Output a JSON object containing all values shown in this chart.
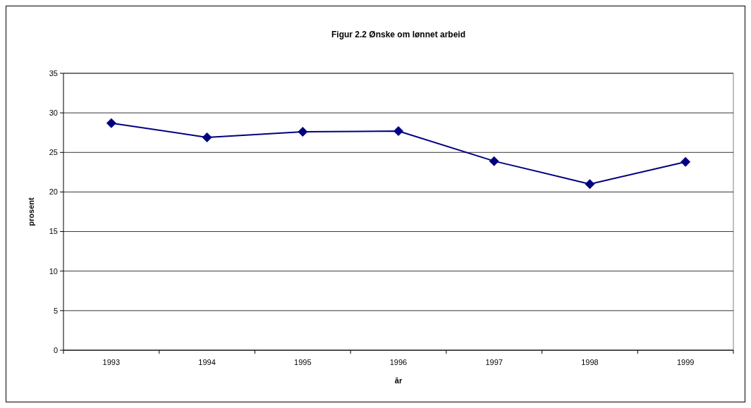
{
  "chart_data": {
    "type": "line",
    "title": "Figur 2.2 Ønske om lønnet arbeid",
    "xlabel": "år",
    "ylabel": "prosent",
    "categories": [
      "1993",
      "1994",
      "1995",
      "1996",
      "1997",
      "1998",
      "1999"
    ],
    "series": [
      {
        "color": "#000080",
        "values": [
          28.7,
          26.9,
          27.6,
          27.7,
          23.9,
          21.0,
          23.8
        ]
      }
    ],
    "ylim": [
      0,
      35
    ],
    "yticks": [
      0,
      5,
      10,
      15,
      20,
      25,
      30,
      35
    ],
    "grid": "y",
    "marker": "diamond",
    "line_style": "solid"
  }
}
